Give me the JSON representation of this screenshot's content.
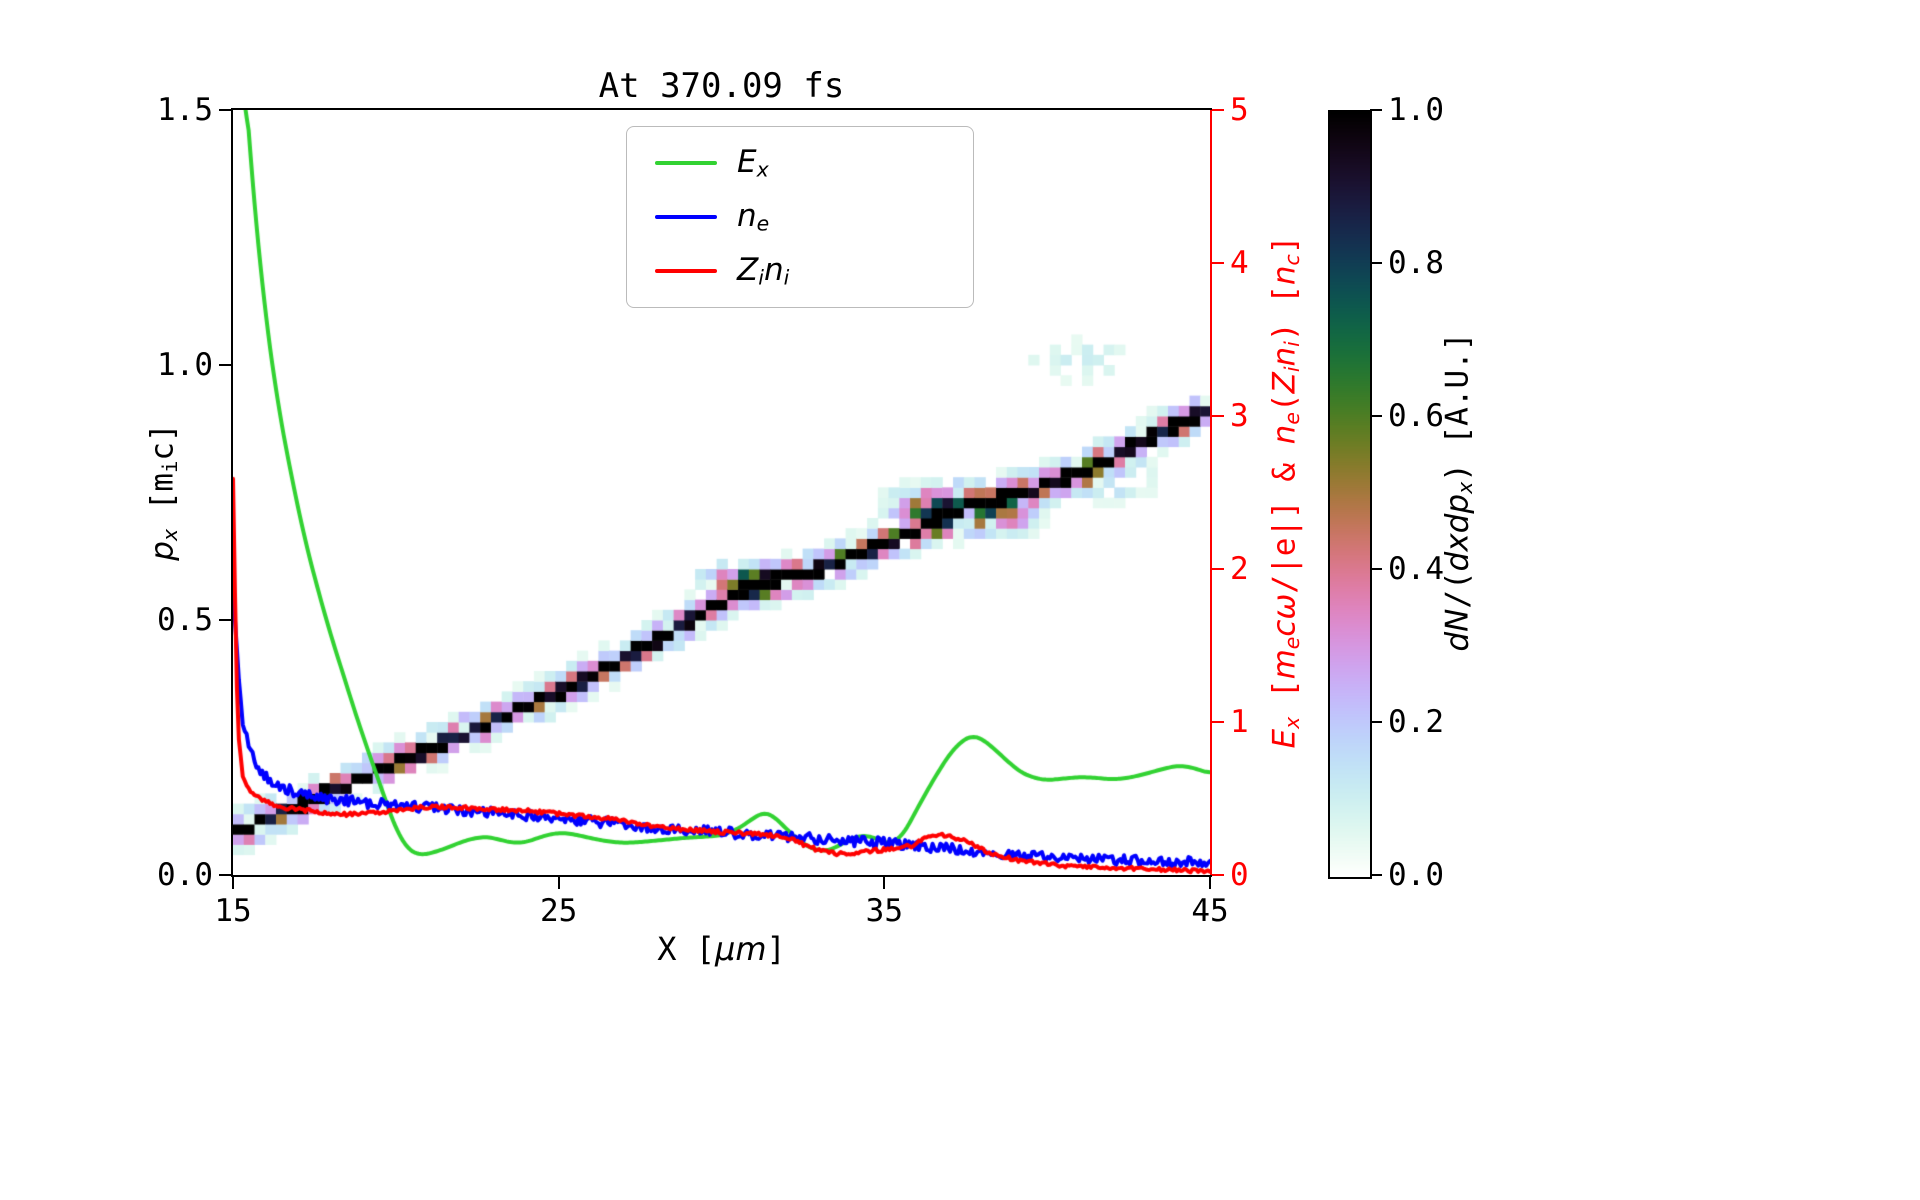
{
  "title": "At 370.09 fs",
  "colors": {
    "ex": "#32d232",
    "ne": "#0000ff",
    "zini": "#ff0000",
    "right_axis": "#ff0000",
    "spine": "#000000"
  },
  "axes": {
    "x": {
      "ticks": [
        "15",
        "25",
        "35",
        "45"
      ],
      "label_parts": [
        {
          "t": "X ["
        },
        {
          "t": "μm",
          "i": true
        },
        {
          "t": "]"
        }
      ]
    },
    "y_left": {
      "ticks": [
        "0.0",
        "0.5",
        "1.0",
        "1.5"
      ],
      "label_parts": [
        {
          "t": "p",
          "i": true
        },
        {
          "t": "x",
          "i": true,
          "sub": true
        },
        {
          "t": " [m"
        },
        {
          "t": "i",
          "sub": true
        },
        {
          "t": "c]"
        }
      ]
    },
    "y_right": {
      "ticks": [
        "0",
        "1",
        "2",
        "3",
        "4",
        "5"
      ],
      "color": "#ff0000",
      "label_parts": [
        {
          "t": "E",
          "i": true
        },
        {
          "t": "x",
          "i": true,
          "sub": true
        },
        {
          "t": " ["
        },
        {
          "t": "m",
          "i": true
        },
        {
          "t": "e",
          "i": true,
          "sub": true
        },
        {
          "t": "c",
          "i": true
        },
        {
          "t": "ω",
          "i": true
        },
        {
          "t": "/|e|] & "
        },
        {
          "t": "n",
          "i": true
        },
        {
          "t": "e",
          "i": true,
          "sub": true
        },
        {
          "t": "("
        },
        {
          "t": "Z",
          "i": true
        },
        {
          "t": "i",
          "i": true,
          "sub": true
        },
        {
          "t": "n",
          "i": true
        },
        {
          "t": "i",
          "i": true,
          "sub": true
        },
        {
          "t": ") ["
        },
        {
          "t": "n",
          "i": true
        },
        {
          "t": "c",
          "i": true,
          "sub": true
        },
        {
          "t": "]"
        }
      ]
    },
    "colorbar": {
      "ticks": [
        "0.0",
        "0.2",
        "0.4",
        "0.6",
        "0.8",
        "1.0"
      ],
      "colormap": "cubehelix_r",
      "label_parts": [
        {
          "t": "dN",
          "i": true
        },
        {
          "t": "/("
        },
        {
          "t": "dxdp",
          "i": true
        },
        {
          "t": "x",
          "i": true,
          "sub": true
        },
        {
          "t": ")"
        },
        {
          "t": " [A.U.]"
        }
      ]
    }
  },
  "legend": {
    "items": [
      {
        "name": "E_x",
        "color": "#32d232",
        "label_parts": [
          {
            "t": "E",
            "i": true
          },
          {
            "t": "x",
            "i": true,
            "sub": true
          }
        ]
      },
      {
        "name": "n_e",
        "color": "#0000ff",
        "label_parts": [
          {
            "t": "n",
            "i": true
          },
          {
            "t": "e",
            "i": true,
            "sub": true
          }
        ]
      },
      {
        "name": "Z_i n_i",
        "color": "#ff0000",
        "label_parts": [
          {
            "t": "Z",
            "i": true
          },
          {
            "t": "i",
            "i": true,
            "sub": true
          },
          {
            "t": "n",
            "i": true
          },
          {
            "t": "i",
            "i": true,
            "sub": true
          }
        ]
      }
    ]
  },
  "chart_data": {
    "type": "heatmap+line",
    "title": "At 370.09 fs",
    "xlabel": "X [um]",
    "ylabel_left": "p_x [m_i c]",
    "ylabel_right": "E_x [m_e c w/|e|] & n_e(Z_i n_i) [n_c]",
    "colorbar_label": "dN/(dxdp_x) [A.U.]",
    "x_range": [
      15,
      45
    ],
    "y_left_range": [
      0.0,
      1.5
    ],
    "y_right_range": [
      0,
      5
    ],
    "legend_position": "upper center",
    "grid": false,
    "series": [
      {
        "name": "E_x",
        "axis": "right",
        "color": "#32d232",
        "noise": 0,
        "smooth": true,
        "points": [
          [
            15.3,
            5.4
          ],
          [
            15.6,
            4.5
          ],
          [
            16,
            3.65
          ],
          [
            16.4,
            3.05
          ],
          [
            16.8,
            2.6
          ],
          [
            17.2,
            2.2
          ],
          [
            17.6,
            1.87
          ],
          [
            18,
            1.57
          ],
          [
            18.4,
            1.3
          ],
          [
            18.8,
            1.03
          ],
          [
            19.2,
            0.78
          ],
          [
            19.6,
            0.54
          ],
          [
            20,
            0.3
          ],
          [
            20.4,
            0.16
          ],
          [
            20.8,
            0.13
          ],
          [
            21.2,
            0.15
          ],
          [
            21.6,
            0.18
          ],
          [
            22,
            0.215
          ],
          [
            22.4,
            0.24
          ],
          [
            22.8,
            0.25
          ],
          [
            23.2,
            0.23
          ],
          [
            23.6,
            0.21
          ],
          [
            24,
            0.215
          ],
          [
            24.4,
            0.245
          ],
          [
            24.8,
            0.27
          ],
          [
            25.2,
            0.275
          ],
          [
            25.6,
            0.26
          ],
          [
            26,
            0.24
          ],
          [
            26.5,
            0.22
          ],
          [
            27,
            0.21
          ],
          [
            27.5,
            0.215
          ],
          [
            28,
            0.225
          ],
          [
            28.5,
            0.235
          ],
          [
            29,
            0.245
          ],
          [
            29.5,
            0.25
          ],
          [
            30,
            0.26
          ],
          [
            30.5,
            0.3
          ],
          [
            31,
            0.375
          ],
          [
            31.3,
            0.41
          ],
          [
            31.6,
            0.385
          ],
          [
            32,
            0.3
          ],
          [
            32.4,
            0.22
          ],
          [
            32.8,
            0.17
          ],
          [
            33.2,
            0.155
          ],
          [
            33.6,
            0.19
          ],
          [
            34,
            0.24
          ],
          [
            34.4,
            0.26
          ],
          [
            34.8,
            0.235
          ],
          [
            35.2,
            0.2
          ],
          [
            35.6,
            0.27
          ],
          [
            36,
            0.43
          ],
          [
            36.5,
            0.62
          ],
          [
            37,
            0.79
          ],
          [
            37.4,
            0.88
          ],
          [
            37.7,
            0.91
          ],
          [
            38,
            0.89
          ],
          [
            38.4,
            0.82
          ],
          [
            38.8,
            0.74
          ],
          [
            39.2,
            0.67
          ],
          [
            39.6,
            0.635
          ],
          [
            40,
            0.62
          ],
          [
            40.5,
            0.63
          ],
          [
            41,
            0.64
          ],
          [
            41.5,
            0.635
          ],
          [
            42,
            0.625
          ],
          [
            42.5,
            0.635
          ],
          [
            43,
            0.66
          ],
          [
            43.5,
            0.69
          ],
          [
            44,
            0.715
          ],
          [
            44.4,
            0.705
          ],
          [
            44.7,
            0.685
          ],
          [
            45,
            0.665
          ]
        ]
      },
      {
        "name": "n_e",
        "axis": "right",
        "color": "#0000ff",
        "noise": 0.035,
        "smooth": false,
        "points": [
          [
            15,
            1.85
          ],
          [
            15.15,
            1.35
          ],
          [
            15.3,
            1.0
          ],
          [
            15.5,
            0.82
          ],
          [
            15.8,
            0.69
          ],
          [
            16.1,
            0.63
          ],
          [
            16.5,
            0.575
          ],
          [
            17,
            0.53
          ],
          [
            17.5,
            0.51
          ],
          [
            18,
            0.495
          ],
          [
            19,
            0.475
          ],
          [
            20,
            0.455
          ],
          [
            21,
            0.44
          ],
          [
            22,
            0.425
          ],
          [
            23,
            0.41
          ],
          [
            24,
            0.39
          ],
          [
            25,
            0.37
          ],
          [
            26,
            0.35
          ],
          [
            27,
            0.33
          ],
          [
            28,
            0.31
          ],
          [
            29,
            0.295
          ],
          [
            30,
            0.28
          ],
          [
            31,
            0.265
          ],
          [
            32,
            0.25
          ],
          [
            33,
            0.235
          ],
          [
            34,
            0.22
          ],
          [
            35,
            0.21
          ],
          [
            36,
            0.19
          ],
          [
            37,
            0.17
          ],
          [
            38,
            0.15
          ],
          [
            39,
            0.135
          ],
          [
            40,
            0.12
          ],
          [
            41,
            0.11
          ],
          [
            42,
            0.1
          ],
          [
            43,
            0.09
          ],
          [
            44,
            0.085
          ],
          [
            45,
            0.08
          ]
        ]
      },
      {
        "name": "Z_i n_i",
        "axis": "right",
        "color": "#ff0000",
        "noise": 0.012,
        "smooth": false,
        "points": [
          [
            15,
            2.6
          ],
          [
            15.08,
            1.6
          ],
          [
            15.15,
            0.95
          ],
          [
            15.3,
            0.64
          ],
          [
            15.5,
            0.56
          ],
          [
            15.8,
            0.5
          ],
          [
            16.2,
            0.46
          ],
          [
            16.6,
            0.44
          ],
          [
            17,
            0.43
          ],
          [
            17.5,
            0.415
          ],
          [
            18,
            0.4
          ],
          [
            18.5,
            0.395
          ],
          [
            19,
            0.4
          ],
          [
            19.5,
            0.41
          ],
          [
            20,
            0.42
          ],
          [
            20.5,
            0.435
          ],
          [
            21,
            0.445
          ],
          [
            21.5,
            0.445
          ],
          [
            22,
            0.44
          ],
          [
            22.5,
            0.435
          ],
          [
            23,
            0.43
          ],
          [
            23.5,
            0.425
          ],
          [
            24,
            0.42
          ],
          [
            24.5,
            0.41
          ],
          [
            25,
            0.4
          ],
          [
            25.5,
            0.39
          ],
          [
            26,
            0.38
          ],
          [
            26.5,
            0.37
          ],
          [
            27,
            0.355
          ],
          [
            27.5,
            0.335
          ],
          [
            28,
            0.315
          ],
          [
            28.5,
            0.305
          ],
          [
            29,
            0.295
          ],
          [
            29.5,
            0.29
          ],
          [
            30,
            0.28
          ],
          [
            30.5,
            0.275
          ],
          [
            31,
            0.268
          ],
          [
            31.5,
            0.258
          ],
          [
            32,
            0.245
          ],
          [
            32.3,
            0.22
          ],
          [
            32.6,
            0.19
          ],
          [
            33,
            0.16
          ],
          [
            33.4,
            0.142
          ],
          [
            33.8,
            0.136
          ],
          [
            34.2,
            0.15
          ],
          [
            34.6,
            0.16
          ],
          [
            35,
            0.165
          ],
          [
            35.4,
            0.172
          ],
          [
            35.8,
            0.19
          ],
          [
            36.2,
            0.235
          ],
          [
            36.6,
            0.262
          ],
          [
            37,
            0.255
          ],
          [
            37.4,
            0.23
          ],
          [
            37.8,
            0.19
          ],
          [
            38.2,
            0.15
          ],
          [
            38.6,
            0.12
          ],
          [
            39,
            0.1
          ],
          [
            39.5,
            0.085
          ],
          [
            40,
            0.072
          ],
          [
            40.5,
            0.062
          ],
          [
            41,
            0.055
          ],
          [
            41.5,
            0.05
          ],
          [
            42,
            0.046
          ],
          [
            42.5,
            0.042
          ],
          [
            43,
            0.038
          ],
          [
            43.5,
            0.034
          ],
          [
            44,
            0.031
          ],
          [
            44.5,
            0.029
          ],
          [
            45,
            0.027
          ]
        ]
      }
    ],
    "heatmap": {
      "quantity": "dN/(dxdp_x) [A.U.]",
      "colormap": "cubehelix_r",
      "value_range": [
        0,
        1
      ],
      "band_points": [
        [
          15,
          0.08
        ],
        [
          18,
          0.165
        ],
        [
          20,
          0.22
        ],
        [
          22,
          0.275
        ],
        [
          24,
          0.33
        ],
        [
          26,
          0.39
        ],
        [
          28,
          0.46
        ],
        [
          29,
          0.5
        ],
        [
          30,
          0.535
        ],
        [
          30.8,
          0.565
        ],
        [
          31.6,
          0.578
        ],
        [
          32.4,
          0.59
        ],
        [
          33,
          0.6
        ],
        [
          34,
          0.625
        ],
        [
          35,
          0.65
        ],
        [
          36,
          0.675
        ],
        [
          36.8,
          0.705
        ],
        [
          37.6,
          0.725
        ],
        [
          38.4,
          0.735
        ],
        [
          39,
          0.745
        ],
        [
          40,
          0.765
        ],
        [
          41,
          0.79
        ],
        [
          42,
          0.82
        ],
        [
          43,
          0.855
        ],
        [
          44,
          0.885
        ],
        [
          45,
          0.915
        ]
      ],
      "blobs": [
        {
          "x": 30.8,
          "p": 0.575,
          "rx": 1.1,
          "ry": 0.03,
          "a": 0.75
        },
        {
          "x": 36.9,
          "p": 0.715,
          "rx": 1.3,
          "ry": 0.042,
          "a": 0.85
        },
        {
          "x": 38.8,
          "p": 0.7,
          "rx": 0.9,
          "ry": 0.03,
          "a": 0.3
        },
        {
          "x": 41.3,
          "p": 0.77,
          "rx": 2.0,
          "ry": 0.035,
          "a": 0.2
        },
        {
          "x": 41.0,
          "p": 1.01,
          "rx": 1.6,
          "ry": 0.045,
          "a": 0.12
        }
      ]
    }
  }
}
